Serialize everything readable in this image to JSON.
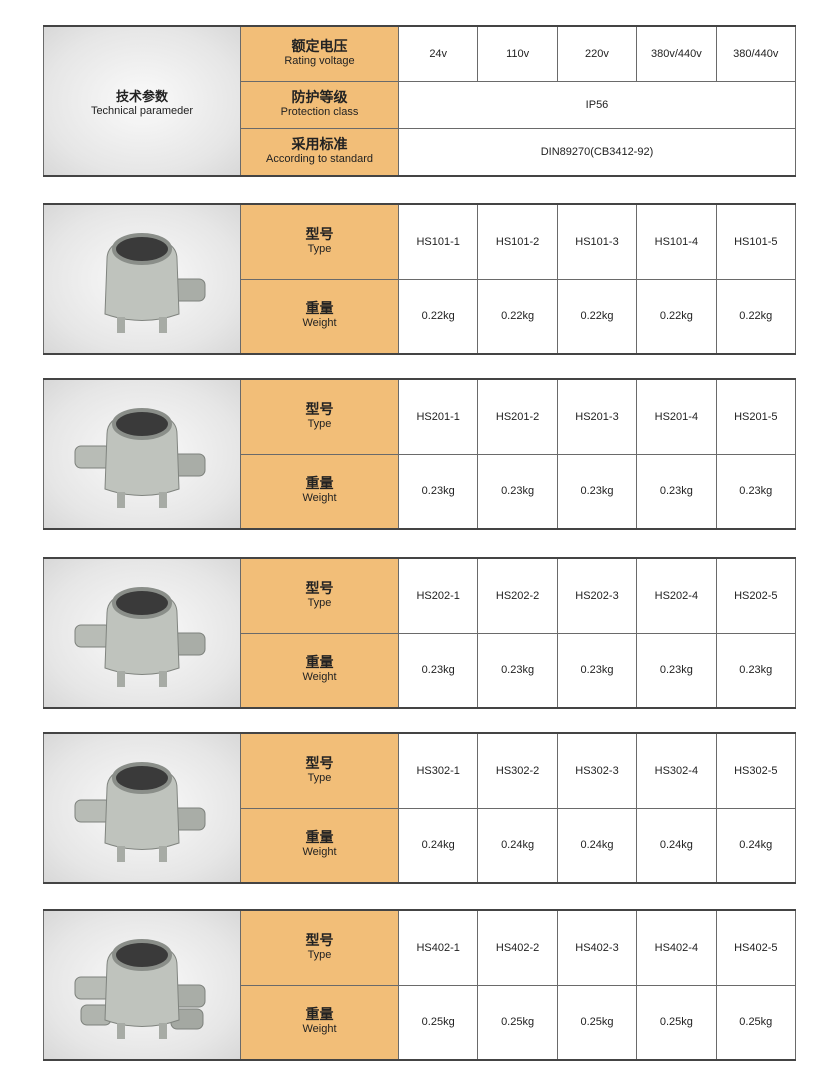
{
  "technical": {
    "title_zh": "技术参数",
    "title_en": "Technical parameder",
    "rows": [
      {
        "zh": "额定电压",
        "en": "Rating voltage",
        "values": [
          "24v",
          "110v",
          "220v",
          "380v/440v",
          "380/440v"
        ]
      },
      {
        "zh": "防护等级",
        "en": "Protection class",
        "value": "IP56"
      },
      {
        "zh": "采用标准",
        "en": "According to standard",
        "value": "DIN89270(CB3412-92)"
      }
    ]
  },
  "labels": {
    "type_zh": "型号",
    "type_en": "Type",
    "weight_zh": "重量",
    "weight_en": "Weight"
  },
  "products": [
    {
      "types": [
        "HS101-1",
        "HS101-2",
        "HS101-3",
        "HS101-4",
        "HS101-5"
      ],
      "weight": "0.22kg",
      "image": "junction-box-1-outlet"
    },
    {
      "types": [
        "HS201-1",
        "HS201-2",
        "HS201-3",
        "HS201-4",
        "HS201-5"
      ],
      "weight": "0.23kg",
      "image": "junction-box-2-outlet"
    },
    {
      "types": [
        "HS202-1",
        "HS202-2",
        "HS202-3",
        "HS202-4",
        "HS202-5"
      ],
      "weight": "0.23kg",
      "image": "junction-box-2-outlet-angled"
    },
    {
      "types": [
        "HS302-1",
        "HS302-2",
        "HS302-3",
        "HS302-4",
        "HS302-5"
      ],
      "weight": "0.24kg",
      "image": "junction-box-3-outlet"
    },
    {
      "types": [
        "HS402-1",
        "HS402-2",
        "HS402-3",
        "HS402-4",
        "HS402-5"
      ],
      "weight": "0.25kg",
      "image": "junction-box-4-outlet"
    }
  ]
}
